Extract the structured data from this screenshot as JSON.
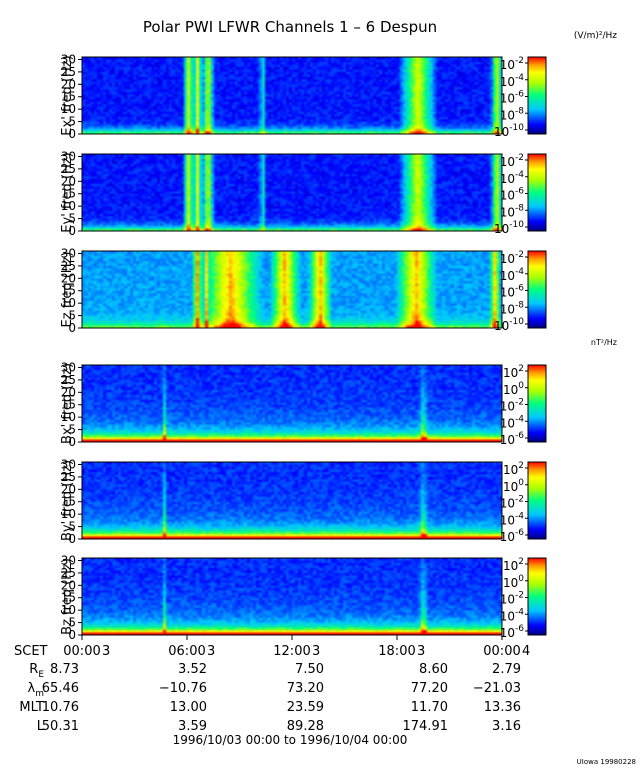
{
  "title": "Polar PWI LFWR Channels 1 – 6 Despun",
  "footer_range": "1996/10/03 00:00 to 1996/10/04 00:00",
  "credit": "UIowa 19980228",
  "chart_data": {
    "type": "heatmap",
    "panels": [
      {
        "ylabel": "Ex' freq (Hz)",
        "ylim": [
          0,
          31
        ],
        "yticks": [
          "0",
          "5",
          "10",
          "15",
          "20",
          "25",
          "30"
        ],
        "field": "E",
        "events": [
          [
            6.1,
            0.35
          ],
          [
            6.6,
            0.3
          ],
          [
            7.2,
            0.35
          ],
          [
            10.3,
            0.12
          ],
          [
            19.2,
            1.1
          ],
          [
            23.7,
            0.35
          ]
        ]
      },
      {
        "ylabel": "Ey' freq (Hz)",
        "ylim": [
          0,
          31
        ],
        "yticks": [
          "0",
          "5",
          "10",
          "15",
          "20",
          "25",
          "30"
        ],
        "field": "E",
        "events": [
          [
            6.1,
            0.35
          ],
          [
            6.6,
            0.3
          ],
          [
            7.2,
            0.35
          ],
          [
            10.3,
            0.12
          ],
          [
            19.2,
            1.1
          ],
          [
            23.7,
            0.35
          ]
        ]
      },
      {
        "ylabel": "Ez freq (Hz)",
        "ylim": [
          0,
          31
        ],
        "yticks": [
          "0",
          "5",
          "10",
          "15",
          "20",
          "25",
          "30"
        ],
        "field": "Ez",
        "events": [
          [
            6.6,
            0.3
          ],
          [
            7.1,
            0.2
          ],
          [
            8.5,
            1.8
          ],
          [
            11.6,
            0.9
          ],
          [
            13.6,
            0.7
          ],
          [
            19.1,
            1.2
          ],
          [
            23.6,
            0.3
          ]
        ]
      },
      {
        "ylabel": "Bx' freq (Hz)",
        "ylim": [
          0,
          31
        ],
        "yticks": [
          "0",
          "5",
          "10",
          "15",
          "20",
          "25",
          "30"
        ],
        "field": "B",
        "events": [
          [
            4.7,
            0.1
          ],
          [
            19.5,
            0.25
          ]
        ]
      },
      {
        "ylabel": "By' freq (Hz)",
        "ylim": [
          0,
          31
        ],
        "yticks": [
          "0",
          "5",
          "10",
          "15",
          "20",
          "25",
          "30"
        ],
        "field": "B",
        "events": [
          [
            4.7,
            0.1
          ],
          [
            19.5,
            0.25
          ]
        ]
      },
      {
        "ylabel": "Bz freq (Hz)",
        "ylim": [
          0,
          31
        ],
        "yticks": [
          "0",
          "5",
          "10",
          "15",
          "20",
          "25",
          "30"
        ],
        "field": "B",
        "events": [
          [
            4.7,
            0.1
          ],
          [
            19.5,
            0.25
          ]
        ]
      }
    ],
    "colorbars": [
      {
        "unit": "(V/m)²/Hz",
        "ticks": [
          [
            "10",
            "-2"
          ],
          [
            "10",
            "-4"
          ],
          [
            "10",
            "-6"
          ],
          [
            "10",
            "-8"
          ],
          [
            "10",
            "-10"
          ]
        ]
      },
      {
        "unit": "(V/m)²/Hz",
        "ticks": [
          [
            "10",
            "-2"
          ],
          [
            "10",
            "-4"
          ],
          [
            "10",
            "-6"
          ],
          [
            "10",
            "-8"
          ],
          [
            "10",
            "-10"
          ]
        ]
      },
      {
        "unit": "(V/m)²/Hz",
        "ticks": [
          [
            "10",
            "-2"
          ],
          [
            "10",
            "-4"
          ],
          [
            "10",
            "-6"
          ],
          [
            "10",
            "-8"
          ],
          [
            "10",
            "-10"
          ]
        ]
      },
      {
        "unit": "nT²/Hz",
        "ticks": [
          [
            "10",
            "2"
          ],
          [
            "10",
            "0"
          ],
          [
            "10",
            "-2"
          ],
          [
            "10",
            "-4"
          ],
          [
            "10",
            "-6"
          ]
        ]
      },
      {
        "unit": "nT²/Hz",
        "ticks": [
          [
            "10",
            "2"
          ],
          [
            "10",
            "0"
          ],
          [
            "10",
            "-2"
          ],
          [
            "10",
            "-4"
          ],
          [
            "10",
            "-6"
          ]
        ]
      },
      {
        "unit": "nT²/Hz",
        "ticks": [
          [
            "10",
            "2"
          ],
          [
            "10",
            "0"
          ],
          [
            "10",
            "-2"
          ],
          [
            "10",
            "-4"
          ],
          [
            "10",
            "-6"
          ]
        ]
      }
    ],
    "x_axis": {
      "label": "SCET",
      "xlim_hours": [
        0,
        24
      ],
      "ticks": [
        {
          "hours": 0,
          "time": "00:00",
          "day": "3"
        },
        {
          "hours": 6,
          "time": "06:00",
          "day": "3"
        },
        {
          "hours": 12,
          "time": "12:00",
          "day": "3"
        },
        {
          "hours": 18,
          "time": "18:00",
          "day": "3"
        },
        {
          "hours": 24,
          "time": "00:00",
          "day": "4"
        }
      ]
    },
    "ephemeris": [
      {
        "label": "R",
        "sub": "E",
        "values": [
          "8.73",
          "3.52",
          "7.50",
          "8.60",
          "2.79"
        ]
      },
      {
        "label": "λ",
        "sub": "m",
        "values": [
          "65.46",
          "−10.76",
          "73.20",
          "77.20",
          "−21.03"
        ]
      },
      {
        "label": "MLT",
        "sub": "",
        "values": [
          "10.76",
          "13.00",
          "23.59",
          "11.70",
          "13.36"
        ]
      },
      {
        "label": "L",
        "sub": "",
        "values": [
          "50.31",
          "3.59",
          "89.28",
          "174.91",
          "3.16"
        ]
      }
    ]
  }
}
